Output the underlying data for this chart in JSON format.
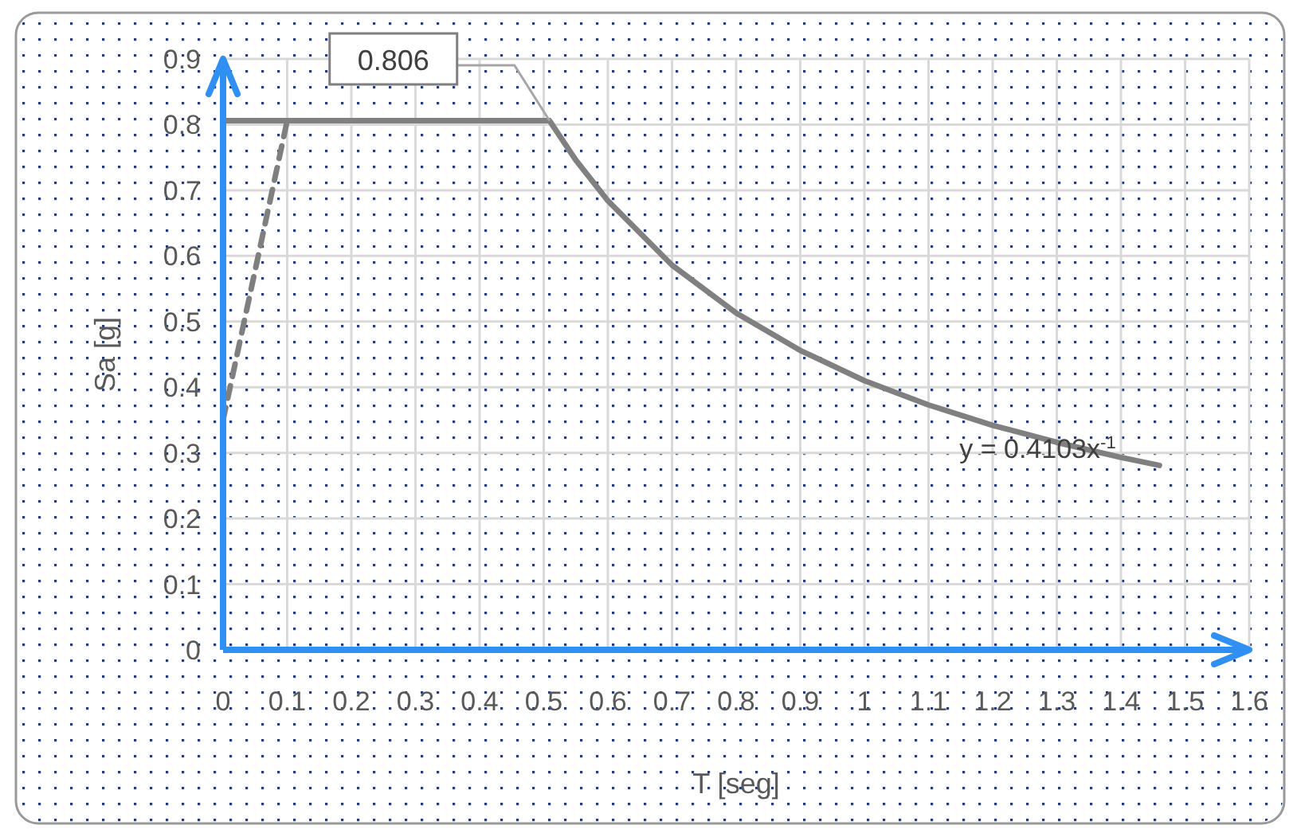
{
  "chart_data": {
    "type": "line",
    "xlabel": "T [seg]",
    "ylabel": "Sa [g]",
    "xlim": [
      0,
      1.6
    ],
    "ylim": [
      0,
      0.9
    ],
    "xticks": [
      0,
      0.1,
      0.2,
      0.3,
      0.4,
      0.5,
      0.6,
      0.7,
      0.8,
      0.9,
      1,
      1.1,
      1.2,
      1.3,
      1.4,
      1.5,
      1.6
    ],
    "yticks": [
      0,
      0.1,
      0.2,
      0.3,
      0.4,
      0.5,
      0.6,
      0.7,
      0.8,
      0.9
    ],
    "grid": true,
    "marker": "none",
    "series": [
      {
        "color": "#7f7f7f",
        "line_style": "dashed",
        "x": [
          0,
          0.1
        ],
        "values": [
          0.35,
          0.806
        ]
      },
      {
        "color": "#808080",
        "line_style": "solid",
        "x": [
          0,
          0.509,
          0.55,
          0.6,
          0.7,
          0.8,
          0.9,
          1.0,
          1.1,
          1.2,
          1.3,
          1.4,
          1.46
        ],
        "values": [
          0.806,
          0.806,
          0.746,
          0.684,
          0.586,
          0.513,
          0.456,
          0.41,
          0.373,
          0.342,
          0.316,
          0.293,
          0.281
        ]
      }
    ],
    "annotations": [
      {
        "text": "0.806",
        "x": 0.509,
        "y": 0.806
      },
      {
        "text": "y = 0.4103x$^{-1}$",
        "x": 1.3,
        "y": 0.316
      }
    ]
  }
}
